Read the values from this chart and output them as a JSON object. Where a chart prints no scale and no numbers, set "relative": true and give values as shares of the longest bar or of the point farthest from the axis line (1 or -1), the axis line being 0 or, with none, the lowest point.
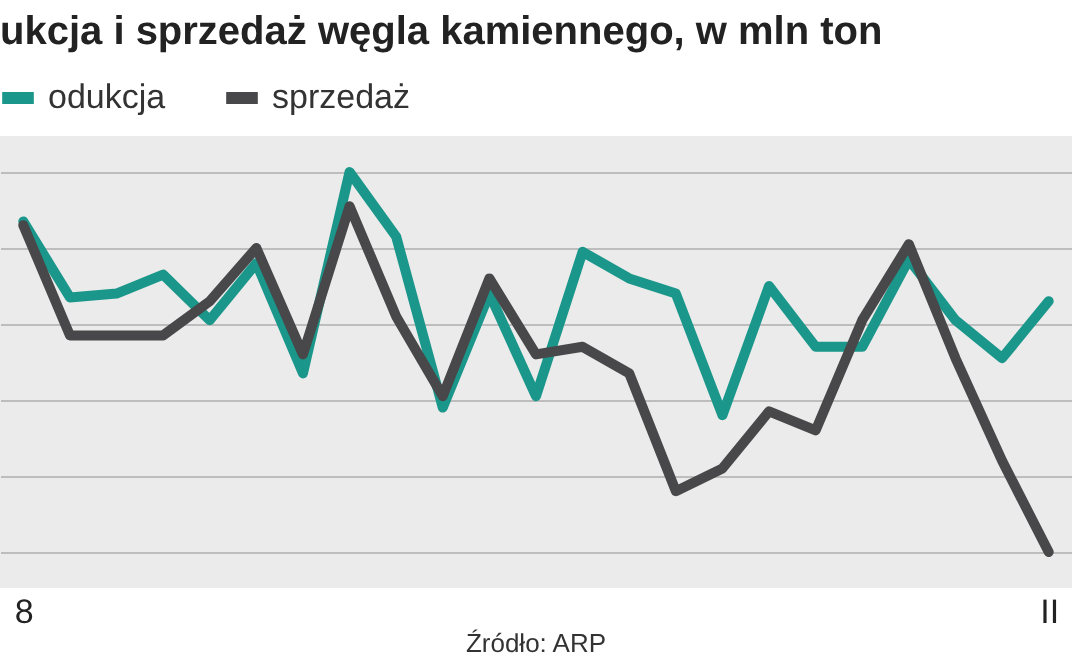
{
  "chart_data": {
    "type": "line",
    "title": "ukcja i sprzedaż węgla kamiennego, w mln ton",
    "relative": true,
    "grid": "y",
    "legend": "top left",
    "line_style": "solid",
    "marker": "none",
    "categories": [
      "8",
      null,
      null,
      null,
      null,
      null,
      null,
      null,
      null,
      null,
      null,
      null,
      null,
      null,
      null,
      null,
      null,
      null,
      null,
      null,
      null,
      null,
      "II"
    ],
    "series": [
      {
        "name": "odukcja",
        "color": "#1a978a",
        "values": [
          0.87,
          0.67,
          0.68,
          0.73,
          0.61,
          0.76,
          0.47,
          1.0,
          0.83,
          0.38,
          0.68,
          0.41,
          0.79,
          0.72,
          0.68,
          0.36,
          0.7,
          0.54,
          0.54,
          0.77,
          0.61,
          0.51,
          0.66
        ]
      },
      {
        "name": "sprzedaż",
        "color": "#48484a",
        "values": [
          0.86,
          0.57,
          0.57,
          0.57,
          0.66,
          0.8,
          0.52,
          0.91,
          0.62,
          0.41,
          0.72,
          0.52,
          0.54,
          0.47,
          0.16,
          0.22,
          0.37,
          0.32,
          0.61,
          0.81,
          0.51,
          0.24,
          0.0
        ]
      }
    ],
    "annotations": [
      "Źródło: ARP"
    ]
  }
}
